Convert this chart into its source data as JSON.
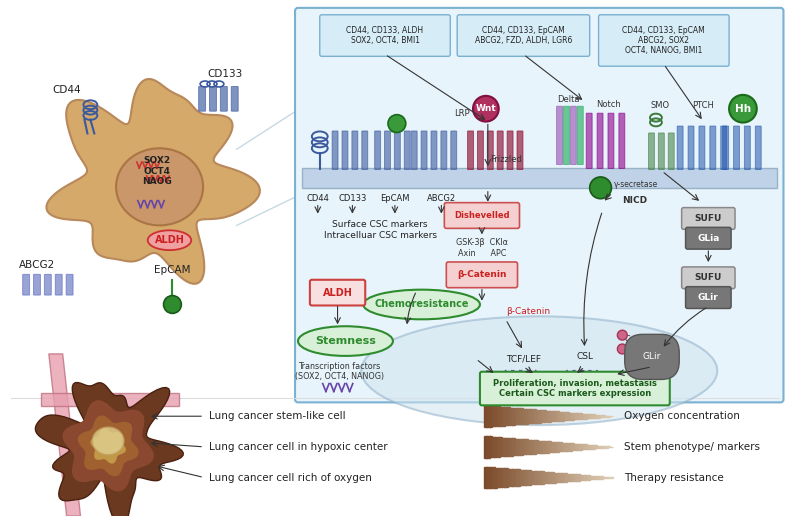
{
  "bg_color": "#ffffff",
  "panel_bg": "#e8f4fb",
  "panel_border": "#7ab0d0",
  "cell_color": "#d4a96a",
  "nucleus_color": "#c8956a",
  "membrane_color": "#b8cce4",
  "blue_protein": "#3b5a9e",
  "green_protein": "#2e8b2e",
  "wnt_color": "#b03060",
  "notch_color": "#8b008b",
  "hh_color": "#3a9a3a",
  "arrow_color": "#333333",
  "triangle_dark": "#7b4a2a",
  "triangle_mid": "#b08060",
  "triangle_light": "#d4c0a0",
  "legend_labels": [
    "Lung cancer stem-like cell",
    "Lung cancer cell in hypoxic center",
    "Lung cancer cell rich of oxygen"
  ],
  "legend_gradient_labels": [
    "Oxygen concentration",
    "Stem phenotype/ markers",
    "Therapy resistance"
  ],
  "wnt_markers": "CD44, CD133, ALDH\nSOX2, OCT4, BMI1",
  "notch_markers": "CD44, CD133, EpCAM\nABCG2, FZD, ALDH, LGR6",
  "hh_markers": "CD44, CD133, EpCAM\nABCG2, SOX2\nOCT4, NANOG, BMI1",
  "surface_label": "Surface CSC markers",
  "intracellular_label": "Intracelluar CSC markers",
  "proliferation_text": "Proliferation, invasion, metastasis\nCertain CSC markers expression",
  "transcription_text": "Transcription factors\n(SOX2, OCT4, NANOG)",
  "stemness_text": "Stemness",
  "chemoresistance_text": "Chemoresistance"
}
